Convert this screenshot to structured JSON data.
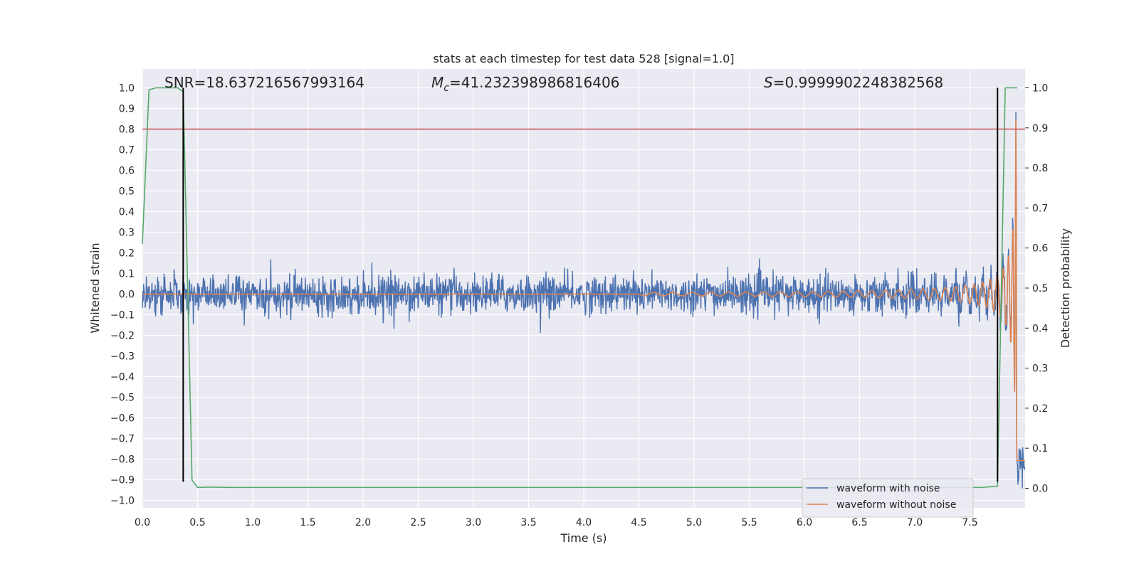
{
  "chart_data": {
    "type": "line",
    "title": "stats at each timestep for test data 528 [signal=1.0]",
    "xlabel": "Time (s)",
    "ylabel": "Whitened strain",
    "ylabel_right": "Detection probability",
    "xlim": [
      0.0,
      8.0
    ],
    "ylim": [
      -1.0,
      1.0
    ],
    "ylim_right": [
      0.0,
      1.0
    ],
    "x_ticks": [
      "0.0",
      "0.5",
      "1.0",
      "1.5",
      "2.0",
      "2.5",
      "3.0",
      "3.5",
      "4.0",
      "4.5",
      "5.0",
      "5.5",
      "6.0",
      "6.5",
      "7.0",
      "7.5"
    ],
    "y_ticks": [
      "1.0",
      "0.9",
      "0.8",
      "0.7",
      "0.6",
      "0.5",
      "0.4",
      "0.3",
      "0.2",
      "0.1",
      "0.0",
      "−0.1",
      "−0.2",
      "−0.3",
      "−0.4",
      "−0.5",
      "−0.6",
      "−0.7",
      "−0.8",
      "−0.9",
      "−1.0"
    ],
    "y_ticks_right": [
      "1.0",
      "0.9",
      "0.8",
      "0.7",
      "0.6",
      "0.5",
      "0.4",
      "0.3",
      "0.2",
      "0.1",
      "0.0"
    ],
    "grid": true,
    "legend_position": "lower right",
    "annotations": {
      "snr": "SNR=18.637216567993164",
      "mc_prefix": "M",
      "mc_sub": "c",
      "mc_value": "=41.232398986816406",
      "s_prefix": "S",
      "s_value": "=0.9999902248382568"
    },
    "threshold_line": {
      "y": 0.8,
      "color": "#c44e52"
    },
    "vertical_lines": [
      {
        "x": 0.37,
        "y0": -0.91,
        "y1": 1.0
      },
      {
        "x": 7.75,
        "y0": -0.91,
        "y1": 1.0
      }
    ],
    "series": [
      {
        "name": "waveform with noise",
        "color": "#4c72b0",
        "noise_amplitude": 0.09
      },
      {
        "name": "waveform without noise",
        "color": "#dd8452",
        "chirp": {
          "start": 4.5,
          "merger": 7.93,
          "peak_amplitude": 1.0
        }
      },
      {
        "name": "detection probability",
        "color": "#55a868",
        "axis": "right",
        "x": [
          0.0,
          0.06,
          0.12,
          0.25,
          0.32,
          0.37,
          0.45,
          0.5,
          0.62,
          0.8,
          7.6,
          7.75,
          7.82,
          7.86,
          7.93
        ],
        "y": [
          0.61,
          0.995,
          1.0,
          1.0,
          1.0,
          0.99,
          0.02,
          0.002,
          0.003,
          0.002,
          0.002,
          0.005,
          1.0,
          1.0,
          1.0
        ]
      }
    ]
  }
}
